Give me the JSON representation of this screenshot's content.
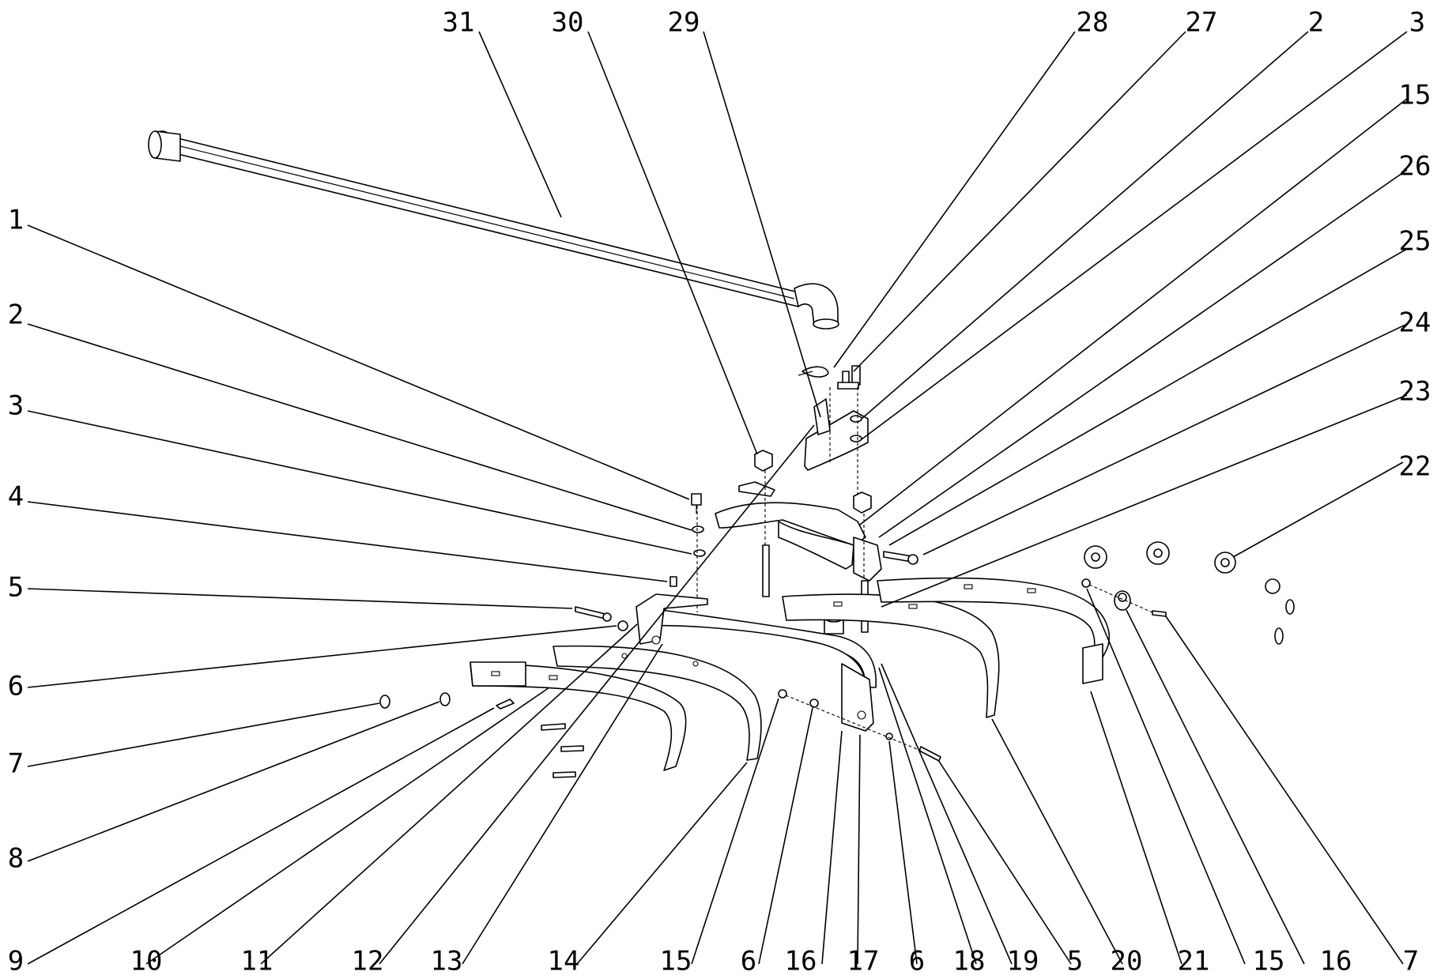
{
  "callouts": [
    {
      "id": "c31",
      "label": "31"
    },
    {
      "id": "c30",
      "label": "30"
    },
    {
      "id": "c29",
      "label": "29"
    },
    {
      "id": "c28",
      "label": "28"
    },
    {
      "id": "c27",
      "label": "27"
    },
    {
      "id": "c2a",
      "label": "2"
    },
    {
      "id": "c3a",
      "label": "3"
    },
    {
      "id": "c15a",
      "label": "15"
    },
    {
      "id": "c26",
      "label": "26"
    },
    {
      "id": "c25",
      "label": "25"
    },
    {
      "id": "c24",
      "label": "24"
    },
    {
      "id": "c23",
      "label": "23"
    },
    {
      "id": "c22",
      "label": "22"
    },
    {
      "id": "c1",
      "label": "1"
    },
    {
      "id": "c2b",
      "label": "2"
    },
    {
      "id": "c3b",
      "label": "3"
    },
    {
      "id": "c4",
      "label": "4"
    },
    {
      "id": "c5a",
      "label": "5"
    },
    {
      "id": "c6a",
      "label": "6"
    },
    {
      "id": "c7a",
      "label": "7"
    },
    {
      "id": "c8",
      "label": "8"
    },
    {
      "id": "c9",
      "label": "9"
    },
    {
      "id": "c10",
      "label": "10"
    },
    {
      "id": "c11",
      "label": "11"
    },
    {
      "id": "c12",
      "label": "12"
    },
    {
      "id": "c13",
      "label": "13"
    },
    {
      "id": "c14",
      "label": "14"
    },
    {
      "id": "c15b",
      "label": "15"
    },
    {
      "id": "c6b",
      "label": "6"
    },
    {
      "id": "c16a",
      "label": "16"
    },
    {
      "id": "c17",
      "label": "17"
    },
    {
      "id": "c6c",
      "label": "6"
    },
    {
      "id": "c18",
      "label": "18"
    },
    {
      "id": "c19",
      "label": "19"
    },
    {
      "id": "c5b",
      "label": "5"
    },
    {
      "id": "c20",
      "label": "20"
    },
    {
      "id": "c21",
      "label": "21"
    },
    {
      "id": "c15c",
      "label": "15"
    },
    {
      "id": "c16b",
      "label": "16"
    },
    {
      "id": "c7b",
      "label": "7"
    }
  ]
}
